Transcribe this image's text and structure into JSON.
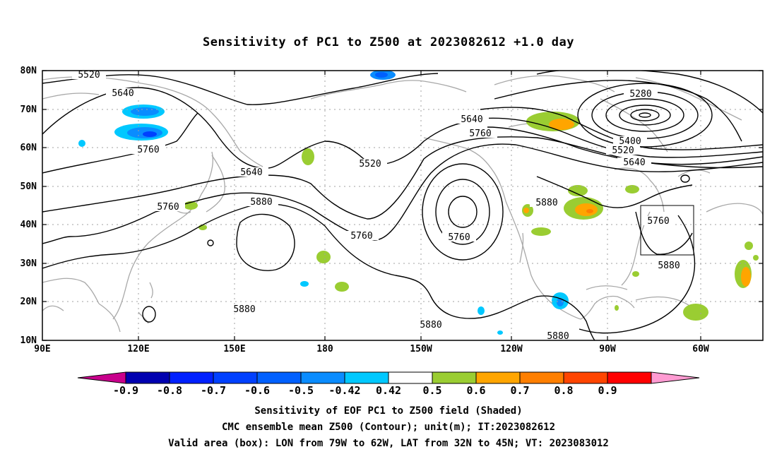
{
  "title": "Sensitivity of PC1 to Z500 at 2023082612 +1.0 day",
  "lat_labels": [
    "80N",
    "70N",
    "60N",
    "50N",
    "40N",
    "30N",
    "20N",
    "10N"
  ],
  "lon_labels": [
    "90E",
    "120E",
    "150E",
    "180",
    "150W",
    "120W",
    "90W",
    "60W"
  ],
  "contour_labels": {
    "c5520_a": "5520",
    "c5640_a": "5640",
    "c5760_a": "5760",
    "c5640_b": "5640",
    "c5760_b": "5760",
    "c5880_a": "5880",
    "c5640_c": "5640",
    "c5760_c": "5760",
    "c5520_b": "5520",
    "c5760_d": "5760",
    "c5760_e": "5760",
    "c5880_b": "5880",
    "c5280": "5280",
    "c5400": "5400",
    "c5520_c": "5520",
    "c5640_d": "5640",
    "c5760_f": "5760",
    "c5880_c": "5880",
    "c5880_d": "5880",
    "c5880_e": "5880",
    "c5880_f": "5880"
  },
  "colorbar": {
    "labels": [
      "-0.9",
      "-0.8",
      "-0.7",
      "-0.6",
      "-0.5",
      "-0.42",
      "0.42",
      "0.5",
      "0.6",
      "0.7",
      "0.8",
      "0.9"
    ],
    "colors": [
      "#0000b0",
      "#0020ff",
      "#0040ff",
      "#0060ff",
      "#0a8cff",
      "#00c8ff",
      "#ffffff",
      "#9acd32",
      "#ffa500",
      "#ff7f00",
      "#ff4500",
      "#ff0000"
    ],
    "left_arrow_color": "#c8008c",
    "right_arrow_color": "#ff9bd2"
  },
  "captions": {
    "line1": "Sensitivity of EOF PC1 to Z500 field (Shaded)",
    "line2": "CMC ensemble mean Z500 (Contour); unit(m); IT:2023082612",
    "line3": "Valid area (box): LON from 79W to 62W, LAT from 32N to 45N; VT: 2023083012"
  }
}
